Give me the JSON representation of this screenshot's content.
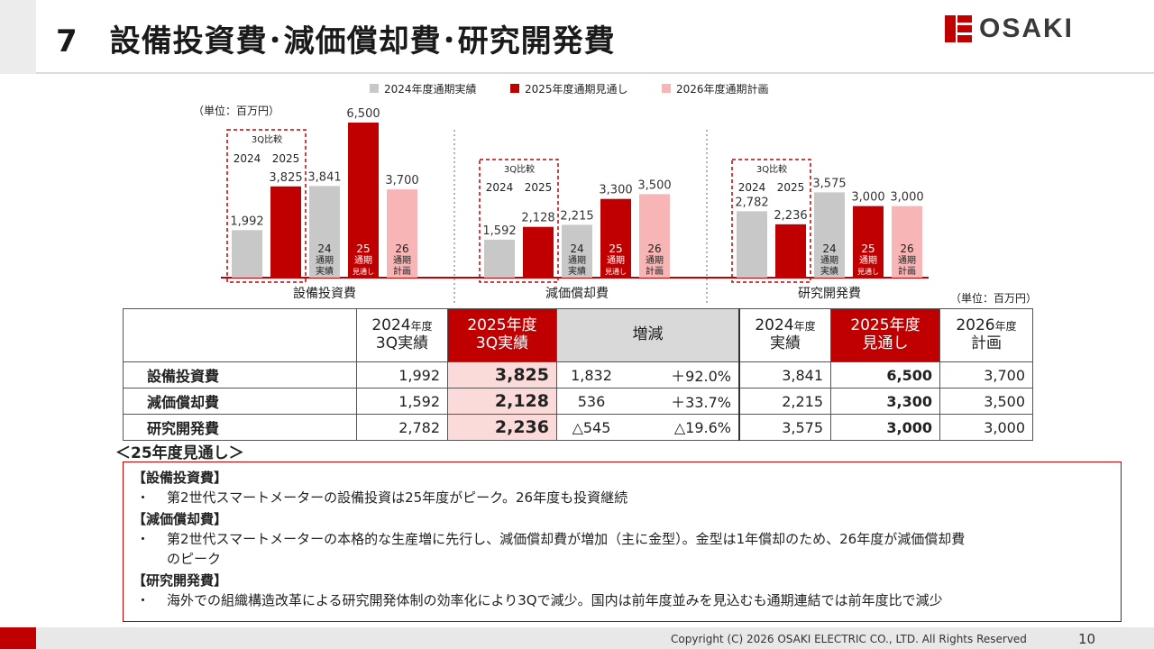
{
  "header": {
    "title": "7　設備投資費･減価償却費･研究開発費",
    "logo_text": "OSAKI",
    "brand_color": "#c00000"
  },
  "footer": {
    "copyright": "Copyright (C) 2026 OSAKI ELECTRIC CO., LTD. All Rights Reserved",
    "page_number": "10"
  },
  "chart_data": {
    "type": "bar",
    "unit_label": "（単位：百万円）",
    "legend": [
      "2024年度通期実績",
      "2025年度通期見通し",
      "2026年度通期計画"
    ],
    "colors": {
      "actual": "#c8c8c8",
      "forecast": "#c00000",
      "plan": "#f7b5b5"
    },
    "compare_label": "3Q比較",
    "compare_years": [
      "2024",
      "2025"
    ],
    "bar_labels": {
      "b24": [
        "24",
        "通期",
        "実績"
      ],
      "b25": [
        "25",
        "通期",
        "見通し"
      ],
      "b26": [
        "26",
        "通期",
        "計画"
      ]
    },
    "groups": [
      {
        "name": "設備投資費",
        "q3_2024": 1992,
        "q3_2025": 3825,
        "fy2024": 3841,
        "fy2025": 6500,
        "fy2026": 3700,
        "labels": [
          "1,992",
          "3,825",
          "3,841",
          "6,500",
          "3,700"
        ]
      },
      {
        "name": "減価償却費",
        "q3_2024": 1592,
        "q3_2025": 2128,
        "fy2024": 2215,
        "fy2025": 3300,
        "fy2026": 3500,
        "labels": [
          "1,592",
          "2,128",
          "2,215",
          "3,300",
          "3,500"
        ]
      },
      {
        "name": "研究開発費",
        "q3_2024": 2782,
        "q3_2025": 2236,
        "fy2024": 3575,
        "fy2025": 3000,
        "fy2026": 3000,
        "labels": [
          "2,782",
          "2,236",
          "3,575",
          "3,000",
          "3,000"
        ]
      }
    ],
    "ylim": [
      0,
      6500
    ]
  },
  "table": {
    "unit_label": "（単位：百万円）",
    "headers": {
      "h1a": "2024",
      "h1b": "年度",
      "h1c": "3Q実績",
      "h2a": "2025年度",
      "h2b": "3Q実績",
      "h3": "増減",
      "h4a": "2024",
      "h4b": "年度",
      "h4c": "実績",
      "h5a": "2025年度",
      "h5b": "見通し",
      "h6a": "2026",
      "h6b": "年度",
      "h6c": "計画"
    },
    "rows": [
      {
        "label": "設備投資費",
        "q3_2024": "1,992",
        "q3_2025": "3,825",
        "diff": "1,832",
        "pct": "＋92.0%",
        "fy2024": "3,841",
        "fy2025": "6,500",
        "fy2026": "3,700"
      },
      {
        "label": "減価償却費",
        "q3_2024": "1,592",
        "q3_2025": "2,128",
        "diff": "536",
        "pct": "＋33.7%",
        "fy2024": "2,215",
        "fy2025": "3,300",
        "fy2026": "3,500"
      },
      {
        "label": "研究開発費",
        "q3_2024": "2,782",
        "q3_2025": "2,236",
        "diff": "△545",
        "pct": "△19.6%",
        "fy2024": "3,575",
        "fy2025": "3,000",
        "fy2026": "3,000"
      }
    ]
  },
  "outlook": {
    "title": "＜25年度見通し＞",
    "sections": [
      {
        "head": "【設備投資費】",
        "bullet": "・",
        "lines": [
          "第2世代スマートメーターの設備投資は25年度がピーク。26年度も投資継続"
        ]
      },
      {
        "head": "【減価償却費】",
        "bullet": "・",
        "lines": [
          "第2世代スマートメーターの本格的な生産増に先行し、減価償却費が増加（主に金型）。金型は1年償却のため、26年度が減価償却費",
          "のピーク"
        ]
      },
      {
        "head": "【研究開発費】",
        "bullet": "・",
        "lines": [
          "海外での組織構造改革による研究開発体制の効率化により3Qで減少。国内は前年度並みを見込むも通期連結では前年度比で減少"
        ]
      }
    ]
  }
}
